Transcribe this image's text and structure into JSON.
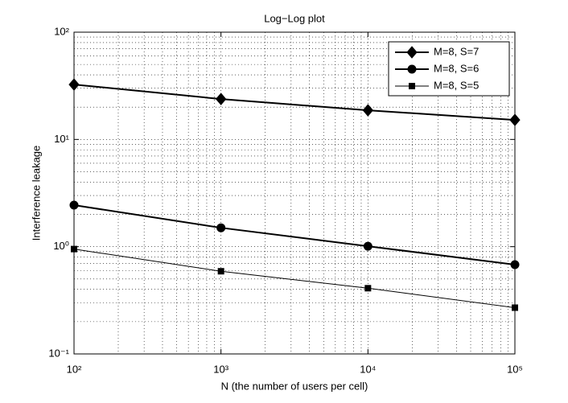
{
  "chart_data": {
    "type": "line",
    "title": "Log−Log plot",
    "x_label": "N (the number of users per cell)",
    "y_label": "Interference leakage",
    "x": [
      100,
      1000,
      10000,
      100000
    ],
    "series": [
      {
        "name": "M=8, S=7",
        "color": "#000000",
        "marker": "diamond",
        "line_width": 2,
        "values": [
          32.5,
          23.8,
          18.7,
          15.2
        ]
      },
      {
        "name": "M=8, S=6",
        "color": "#000000",
        "marker": "circle",
        "line_width": 2,
        "values": [
          2.44,
          1.5,
          1.01,
          0.68
        ]
      },
      {
        "name": "M=8, S=5",
        "color": "#000000",
        "marker": "square",
        "line_width": 1,
        "values": [
          0.95,
          0.59,
          0.41,
          0.27
        ]
      }
    ],
    "xlim": [
      100,
      100000
    ],
    "ylim": [
      0.1,
      100
    ],
    "xticks": [
      {
        "value": 100,
        "label": "10²"
      },
      {
        "value": 1000,
        "label": "10³"
      },
      {
        "value": 10000,
        "label": "10⁴"
      },
      {
        "value": 100000,
        "label": "10⁵"
      }
    ],
    "yticks": [
      {
        "value": 0.1,
        "label": "10⁻¹"
      },
      {
        "value": 1,
        "label": "10⁰"
      },
      {
        "value": 10,
        "label": "10¹"
      },
      {
        "value": 100,
        "label": "10²"
      }
    ],
    "x_log": true,
    "y_log": true,
    "grid": true,
    "minor_grid": true,
    "legend_position": "top-right"
  }
}
